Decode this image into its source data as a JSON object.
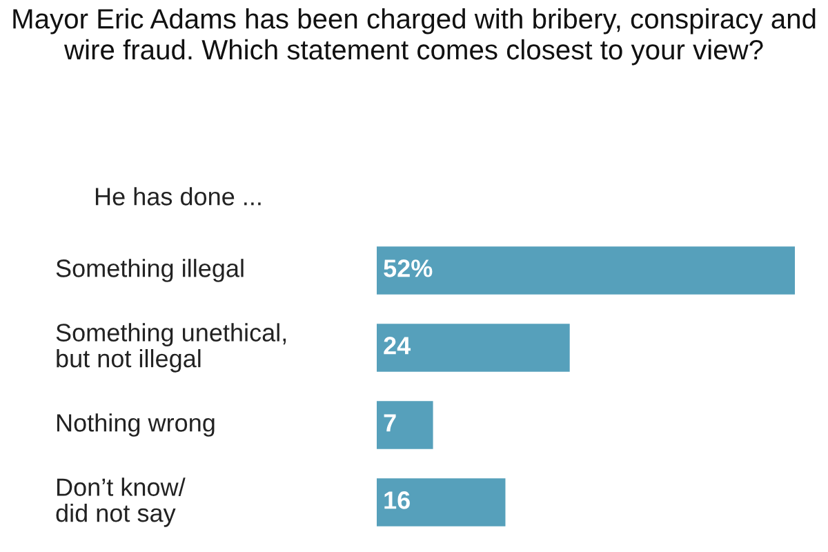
{
  "chart_data": {
    "type": "bar",
    "orientation": "horizontal",
    "title": "Mayor Eric Adams has been charged with bribery, conspiracy and wire fraud. Which statement comes closest to your view?",
    "subtitle": "He has done ...",
    "categories": [
      "Something illegal",
      "Something unethical,\nbut not illegal",
      "Nothing wrong",
      "Don’t know/\ndid not say"
    ],
    "values": [
      52,
      24,
      7,
      16
    ],
    "value_labels": [
      "52%",
      "24",
      "7",
      "16"
    ],
    "color": "#56a0bb"
  }
}
